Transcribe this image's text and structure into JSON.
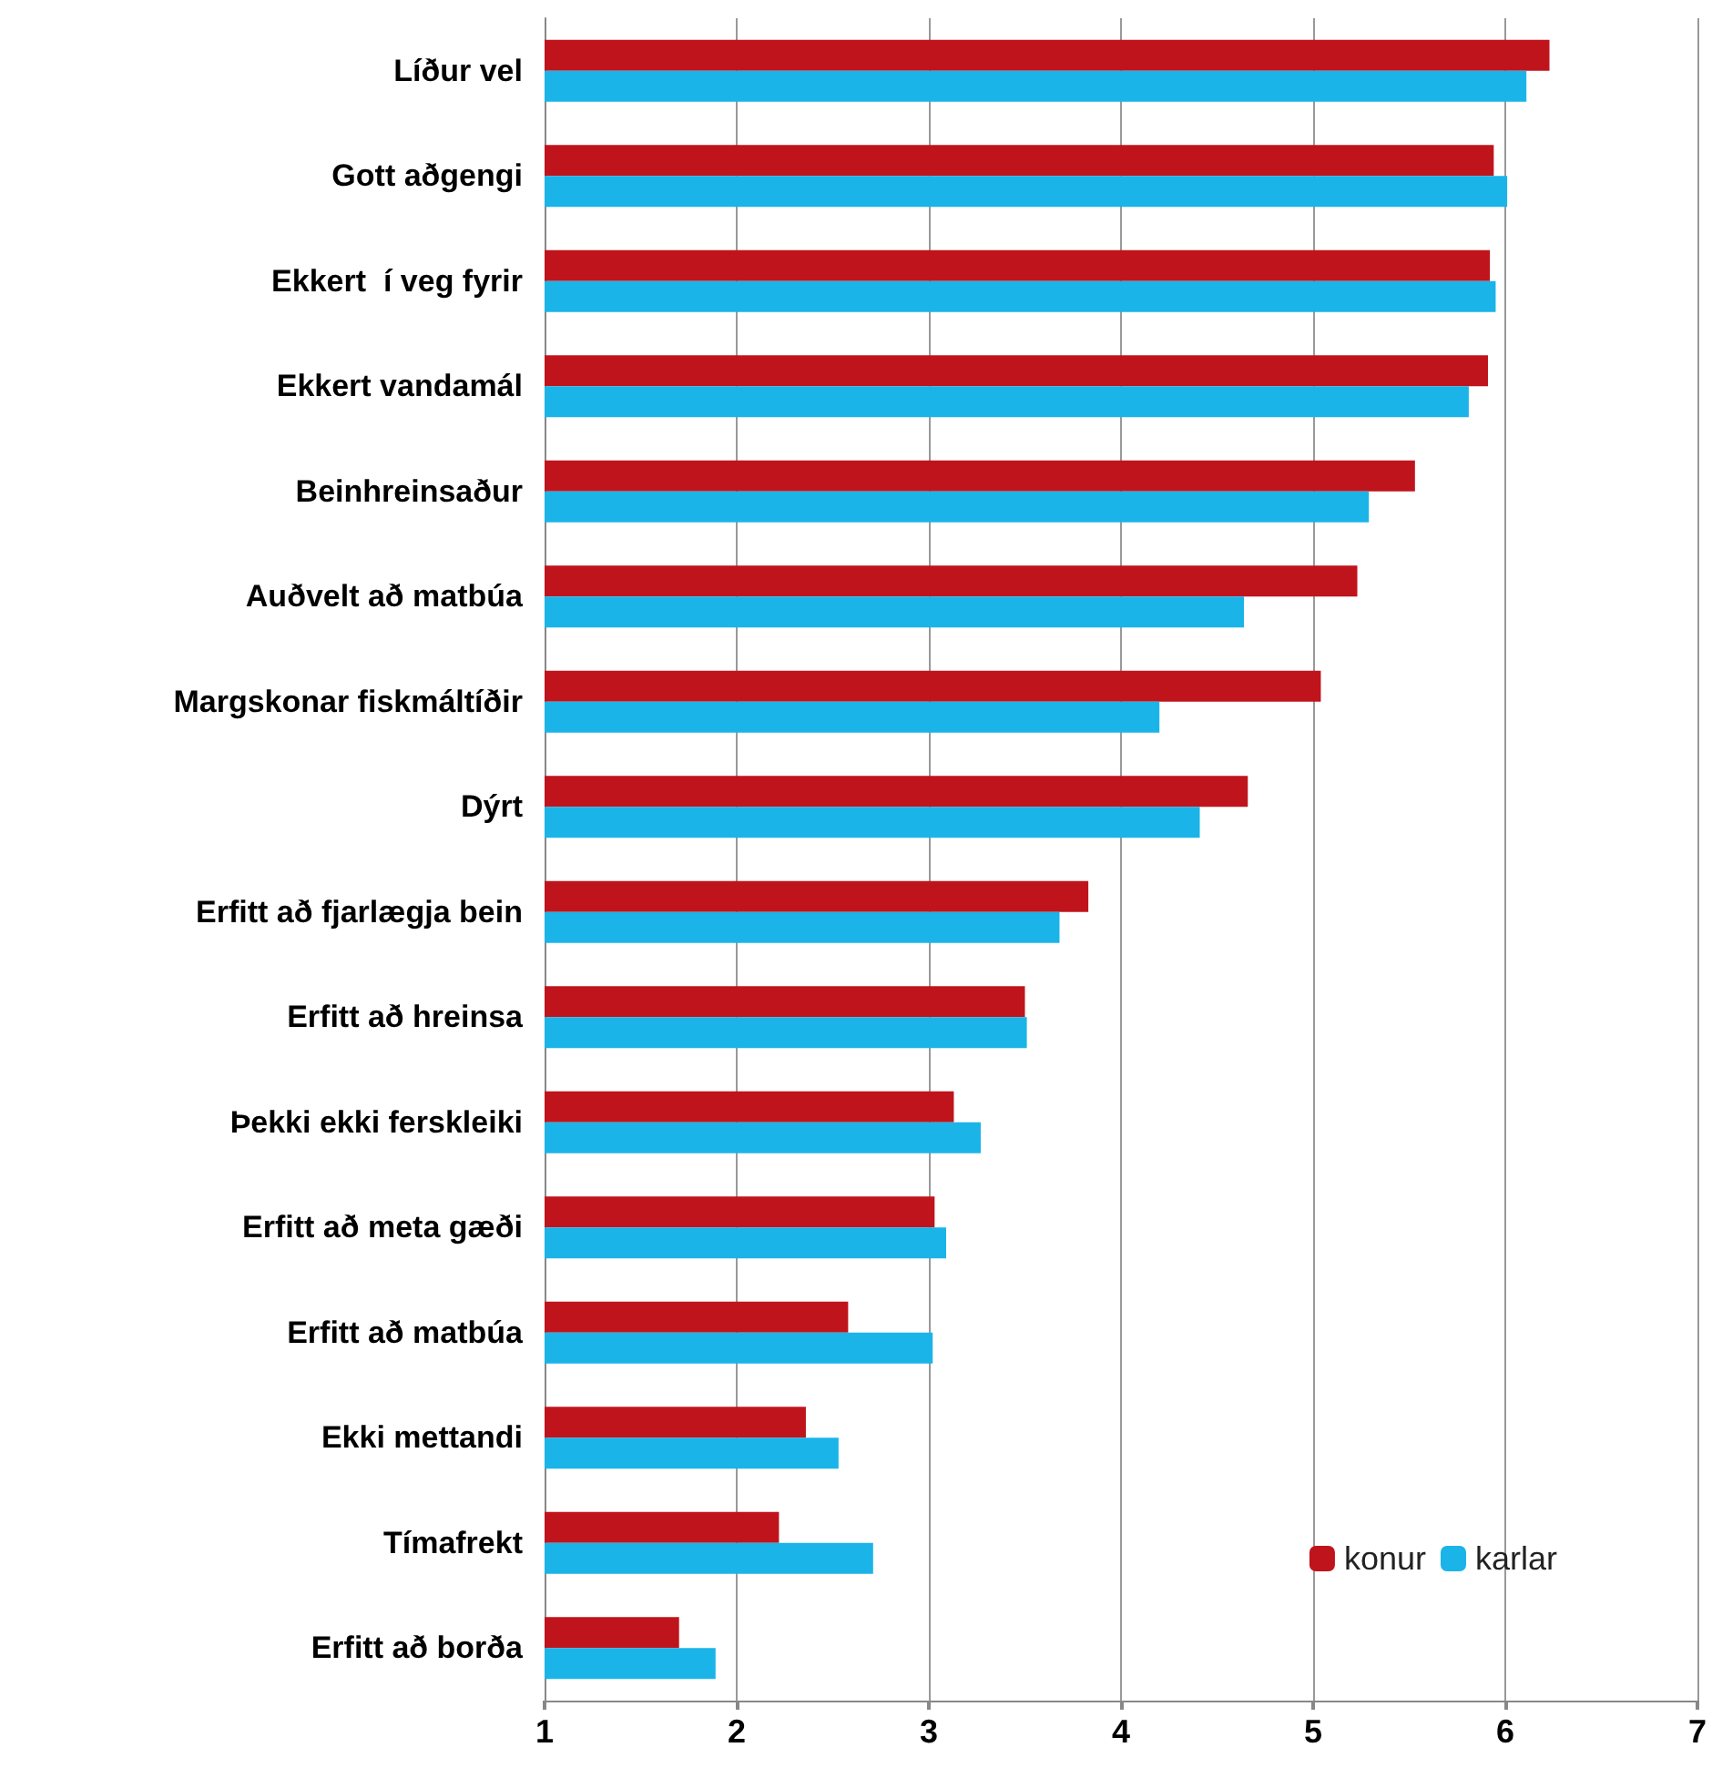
{
  "chart_data": {
    "type": "bar",
    "orientation": "horizontal",
    "categories": [
      "Líður vel",
      "Gott aðgengi",
      "Ekkert  í veg fyrir",
      "Ekkert vandamál",
      "Beinhreinsaður",
      "Auðvelt að matbúa",
      "Margskonar fiskmáltíðir",
      "Dýrt",
      "Erfitt að fjarlægja bein",
      "Erfitt að hreinsa",
      "Þekki ekki ferskleiki",
      "Erfitt að meta gæði",
      "Erfitt að matbúa",
      "Ekki mettandi",
      "Tímafrekt",
      "Erfitt að borða"
    ],
    "series": [
      {
        "name": "konur",
        "color": "#c0141c",
        "values": [
          6.23,
          5.94,
          5.92,
          5.91,
          5.53,
          5.23,
          5.04,
          4.66,
          3.83,
          3.5,
          3.13,
          3.03,
          2.58,
          2.36,
          2.22,
          1.7
        ]
      },
      {
        "name": "karlar",
        "color": "#1ab4e8",
        "values": [
          6.11,
          6.01,
          5.95,
          5.81,
          5.29,
          4.64,
          4.2,
          4.41,
          3.68,
          3.51,
          3.27,
          3.09,
          3.02,
          2.53,
          2.71,
          1.89
        ]
      }
    ],
    "xlim": [
      1,
      7
    ],
    "xticks": [
      1,
      2,
      3,
      4,
      5,
      6,
      7
    ],
    "grid": "x",
    "legend": "bottom right"
  }
}
